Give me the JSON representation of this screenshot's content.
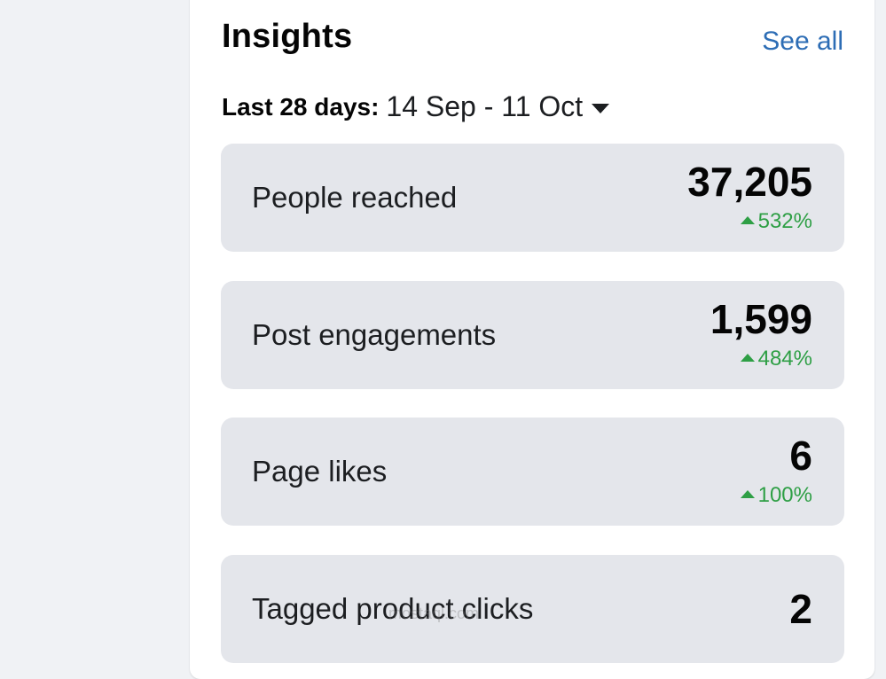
{
  "insights": {
    "title": "Insights",
    "see_all": "See all",
    "range_label": "Last 28 days:",
    "range_value": "14 Sep - 11 Oct"
  },
  "metrics": [
    {
      "label": "People reached",
      "value": "37,205",
      "change": "532%"
    },
    {
      "label": "Post engagements",
      "value": "1,599",
      "change": "484%"
    },
    {
      "label": "Page likes",
      "value": "6",
      "change": "100%"
    },
    {
      "label": "Tagged product clicks",
      "value": "2",
      "change": ""
    }
  ],
  "watermark": {
    "text": "mostaql.com"
  },
  "colors": {
    "accent": "#2d6db5",
    "positive": "#2e9f45",
    "card_bg": "#e4e6eb",
    "page_bg": "#f0f2f5"
  }
}
